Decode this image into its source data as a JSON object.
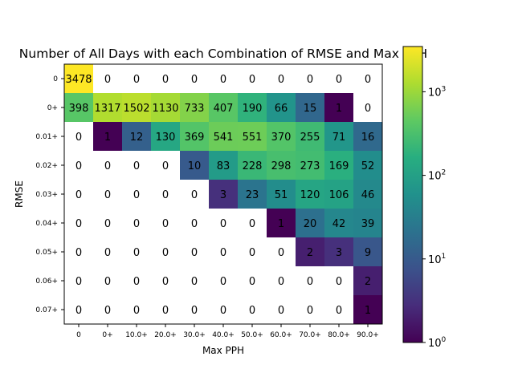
{
  "chart_data": {
    "type": "heatmap",
    "title": "Number of All Days with each Combination of RMSE and Max PPH",
    "xlabel": "Max PPH",
    "ylabel": "RMSE",
    "x_categories": [
      "0",
      "0+",
      "10.0+",
      "20.0+",
      "30.0+",
      "40.0+",
      "50.0+",
      "60.0+",
      "70.0+",
      "80.0+",
      "90.0+"
    ],
    "y_categories": [
      "0",
      "0+",
      "0.01+",
      "0.02+",
      "0.03+",
      "0.04+",
      "0.05+",
      "0.06+",
      "0.07+"
    ],
    "values": [
      [
        3478,
        0,
        0,
        0,
        0,
        0,
        0,
        0,
        0,
        0,
        0
      ],
      [
        398,
        1317,
        1502,
        1130,
        733,
        407,
        190,
        66,
        15,
        1,
        0
      ],
      [
        0,
        1,
        12,
        130,
        369,
        541,
        551,
        370,
        255,
        71,
        16
      ],
      [
        0,
        0,
        0,
        0,
        10,
        83,
        228,
        298,
        273,
        169,
        52
      ],
      [
        0,
        0,
        0,
        0,
        0,
        3,
        23,
        51,
        120,
        106,
        46
      ],
      [
        0,
        0,
        0,
        0,
        0,
        0,
        0,
        1,
        20,
        42,
        39
      ],
      [
        0,
        0,
        0,
        0,
        0,
        0,
        0,
        0,
        2,
        3,
        9
      ],
      [
        0,
        0,
        0,
        0,
        0,
        0,
        0,
        0,
        0,
        0,
        2
      ],
      [
        0,
        0,
        0,
        0,
        0,
        0,
        0,
        0,
        0,
        0,
        1
      ]
    ],
    "colormap": "viridis",
    "color_scale": "log",
    "color_range": [
      1,
      3478
    ],
    "colorbar": {
      "ticks": [
        {
          "base": "10",
          "exp": "0",
          "value": 1
        },
        {
          "base": "10",
          "exp": "1",
          "value": 10
        },
        {
          "base": "10",
          "exp": "2",
          "value": 100
        },
        {
          "base": "10",
          "exp": "3",
          "value": 1000
        }
      ]
    },
    "zero_color": "#ffffff"
  }
}
